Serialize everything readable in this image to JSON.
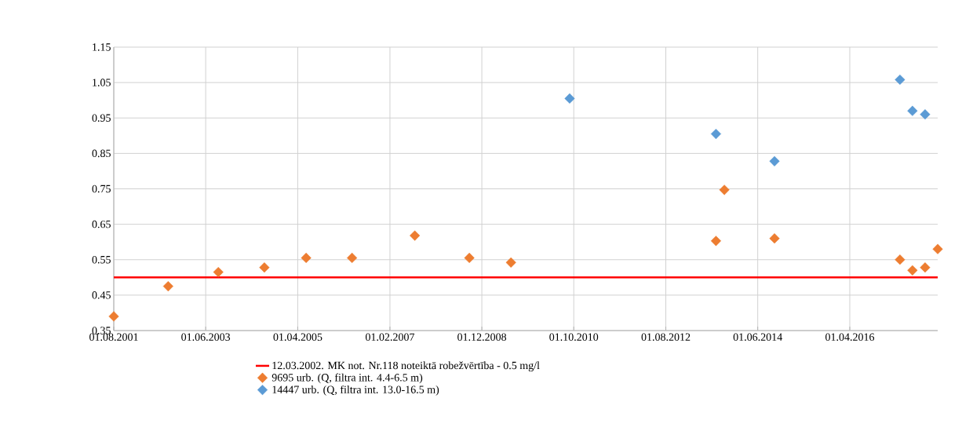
{
  "chart_data": {
    "type": "scatter",
    "grid": true,
    "legend": "bottom",
    "xlim": [
      "2001-08-01",
      "2018-01-01"
    ],
    "ylim": [
      0.35,
      1.15
    ],
    "xticks": [
      {
        "value": "2001-08-01",
        "label": "01.08.2001"
      },
      {
        "value": "2003-06-01",
        "label": "01.06.2003"
      },
      {
        "value": "2005-04-01",
        "label": "01.04.2005"
      },
      {
        "value": "2007-02-01",
        "label": "01.02.2007"
      },
      {
        "value": "2008-12-01",
        "label": "01.12.2008"
      },
      {
        "value": "2010-10-01",
        "label": "01.10.2010"
      },
      {
        "value": "2012-08-01",
        "label": "01.08.2012"
      },
      {
        "value": "2014-06-01",
        "label": "01.06.2014"
      },
      {
        "value": "2016-04-01",
        "label": "01.04.2016"
      }
    ],
    "yticks": [
      0.35,
      0.45,
      0.55,
      0.65,
      0.75,
      0.85,
      0.95,
      1.05,
      1.15
    ],
    "series": [
      {
        "name": "12.03.2002. MK not. Nr.118 noteiktā robežvērtība - 0.5 mg/l",
        "type": "line",
        "marker": "none",
        "color": "#ff0000",
        "x": [
          "2001-08-01",
          "2018-01-01"
        ],
        "values": [
          0.5,
          0.5
        ]
      },
      {
        "name": "9695 urb. (Q, filtra int. 4.4-6.5 m)",
        "marker": "diamond",
        "color": "#ed7d31",
        "x": [
          "2001-08",
          "2002-09",
          "2003-09",
          "2004-08",
          "2005-06",
          "2006-05",
          "2007-08",
          "2008-09",
          "2009-07",
          "2013-08",
          "2013-10",
          "2014-10",
          "2017-04",
          "2017-07",
          "2017-10",
          "2018-01"
        ],
        "values": [
          0.39,
          0.475,
          0.515,
          0.528,
          0.555,
          0.555,
          0.618,
          0.555,
          0.542,
          0.603,
          0.747,
          0.61,
          0.55,
          0.52,
          0.528,
          0.58
        ]
      },
      {
        "name": "14447 urb. (Q, filtra int. 13.0-16.5 m)",
        "marker": "diamond",
        "color": "#5b9bd5",
        "x": [
          "2010-09",
          "2013-08",
          "2014-10",
          "2017-04",
          "2017-07",
          "2017-10"
        ],
        "values": [
          1.005,
          0.905,
          0.828,
          1.058,
          0.97,
          0.96
        ]
      }
    ]
  }
}
